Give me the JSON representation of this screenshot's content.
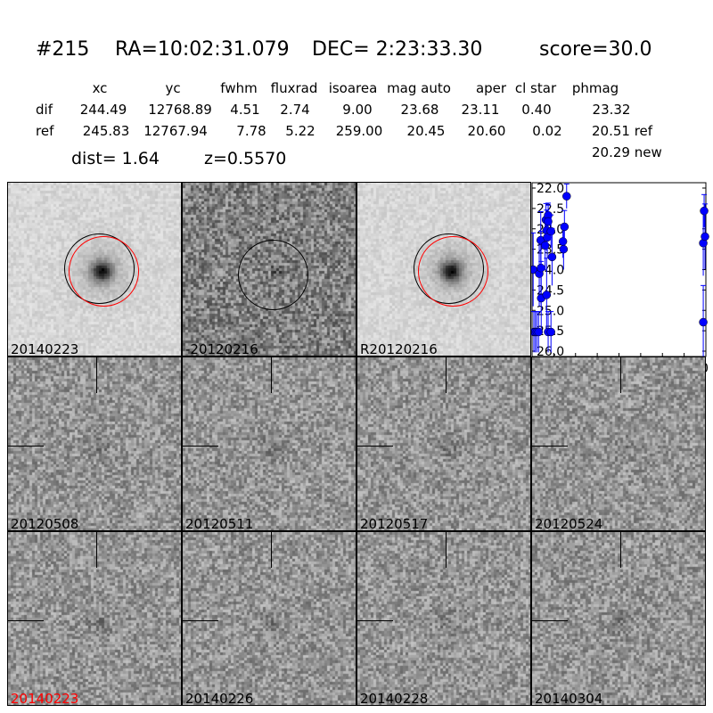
{
  "header": {
    "id": "#215",
    "ra": "RA=10:02:31.079",
    "dec": "DEC= 2:23:33.30",
    "score": "score=30.0",
    "columns": [
      "xc",
      "yc",
      "fwhm",
      "fluxrad",
      "isoarea",
      "mag auto",
      "aper",
      "cl star",
      "phmag"
    ],
    "dif": {
      "label": "dif",
      "values": [
        "244.49",
        "12768.89",
        "4.51",
        "2.74",
        "9.00",
        "23.68",
        "23.11",
        "0.40",
        "23.32"
      ]
    },
    "ref": {
      "label": "ref",
      "values": [
        "245.83",
        "12767.94",
        "7.78",
        "5.22",
        "259.00",
        "20.45",
        "20.60",
        "0.02",
        "20.51 ref"
      ]
    },
    "new_phmag": "20.29 new",
    "dist": "dist=  1.64",
    "z": "z=0.5570"
  },
  "stamps": [
    {
      "label": "20140223",
      "kind": "new",
      "label_color": "#000000"
    },
    {
      "label": "-20120216",
      "kind": "diff",
      "label_color": "#000000"
    },
    {
      "label": "R20120216",
      "kind": "ref",
      "label_color": "#000000"
    },
    {
      "label": "20120508",
      "kind": "noise",
      "label_color": "#000000"
    },
    {
      "label": "20120511",
      "kind": "noise",
      "label_color": "#000000"
    },
    {
      "label": "20120517",
      "kind": "noise",
      "label_color": "#000000"
    },
    {
      "label": "20120524",
      "kind": "noise",
      "label_color": "#000000"
    },
    {
      "label": "20140223",
      "kind": "noise",
      "label_color": "#ff0000"
    },
    {
      "label": "20140226",
      "kind": "noise",
      "label_color": "#000000"
    },
    {
      "label": "20140228",
      "kind": "noise",
      "label_color": "#000000"
    },
    {
      "label": "20140304",
      "kind": "noise",
      "label_color": "#000000"
    }
  ],
  "chart_data": {
    "type": "scatter",
    "xlim": [
      0,
      800
    ],
    "ylim": [
      26.0,
      22.0
    ],
    "y_inverted": true,
    "xticks": [
      "0",
      "100",
      "200",
      "300",
      "400",
      "500",
      "600",
      "700",
      "800"
    ],
    "yticks": [
      "22.0",
      "22.5",
      "23.0",
      "23.5",
      "24.0",
      "24.5",
      "25.0",
      "25.5",
      "26.0"
    ],
    "color": "#0000ff",
    "points": [
      {
        "x": 5,
        "y": 24.0,
        "err": 0.9
      },
      {
        "x": 8,
        "y": 25.53,
        "err": 0.5
      },
      {
        "x": 15,
        "y": 25.53,
        "err": 0.5
      },
      {
        "x": 22,
        "y": 25.53,
        "err": 0.5
      },
      {
        "x": 30,
        "y": 25.53,
        "err": 0.5
      },
      {
        "x": 33,
        "y": 24.1,
        "err": 0.8
      },
      {
        "x": 40,
        "y": 23.28,
        "err": 0.7
      },
      {
        "x": 41,
        "y": 23.96,
        "err": 0.9
      },
      {
        "x": 42,
        "y": 24.7,
        "err": 0.9
      },
      {
        "x": 60,
        "y": 23.41,
        "err": 0.6
      },
      {
        "x": 64,
        "y": 22.78,
        "err": 0.4
      },
      {
        "x": 67,
        "y": 23.04,
        "err": 0.5
      },
      {
        "x": 67,
        "y": 24.62,
        "err": 0.9
      },
      {
        "x": 70,
        "y": 23.21,
        "err": 0.5
      },
      {
        "x": 74,
        "y": 22.67,
        "err": 0.3
      },
      {
        "x": 74,
        "y": 22.82,
        "err": 0.4
      },
      {
        "x": 74,
        "y": 25.53,
        "err": 0.5
      },
      {
        "x": 87,
        "y": 23.06,
        "err": 0.4
      },
      {
        "x": 87,
        "y": 25.53,
        "err": 0.5
      },
      {
        "x": 92,
        "y": 23.69,
        "err": 0.7
      },
      {
        "x": 142,
        "y": 23.31,
        "err": 0.4
      },
      {
        "x": 145,
        "y": 23.5,
        "err": 0.5
      },
      {
        "x": 149,
        "y": 22.95,
        "err": 0.4
      },
      {
        "x": 159,
        "y": 22.2,
        "err": 0.3
      },
      {
        "x": 788,
        "y": 25.29,
        "err": 0.9
      },
      {
        "x": 788,
        "y": 23.35,
        "err": 0.8
      },
      {
        "x": 792,
        "y": 22.56,
        "err": 0.4
      },
      {
        "x": 796,
        "y": 23.19,
        "err": 0.8
      }
    ]
  }
}
